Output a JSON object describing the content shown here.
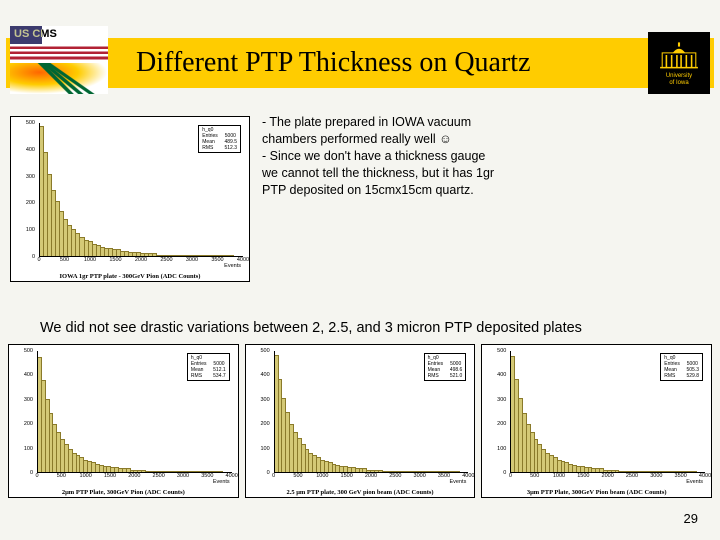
{
  "title": "Different PTP Thickness on Quartz",
  "logo_left": {
    "label": "US CMS"
  },
  "logo_right": {
    "line1": "University",
    "line2": "of Iowa"
  },
  "description": "- The plate prepared in IOWA vacuum chambers performed really well ☺\n- Since we don't have a thickness gauge we cannot tell the thickness, but it has 1gr PTP deposited on 15cmx15cm quartz.",
  "mid_sentence": "We did not see drastic variations between 2, 2.5, and 3 micron PTP deposited plates",
  "page_number": "29",
  "histograms": {
    "bar_color": "#d4c976",
    "bar_border": "#8a7a2a",
    "bg_color": "#ffffff",
    "axis_color": "#000000",
    "yticks": [
      {
        "label": "500",
        "pos": 0
      },
      {
        "label": "400",
        "pos": 20
      },
      {
        "label": "300",
        "pos": 40
      },
      {
        "label": "200",
        "pos": 60
      },
      {
        "label": "100",
        "pos": 80
      },
      {
        "label": "0",
        "pos": 100
      }
    ],
    "xticks": [
      {
        "label": "0",
        "pos": 0
      },
      {
        "label": "500",
        "pos": 12.5
      },
      {
        "label": "1000",
        "pos": 25
      },
      {
        "label": "1500",
        "pos": 37.5
      },
      {
        "label": "2000",
        "pos": 50
      },
      {
        "label": "2500",
        "pos": 62.5
      },
      {
        "label": "3000",
        "pos": 75
      },
      {
        "label": "3500",
        "pos": 87.5
      },
      {
        "label": "4000",
        "pos": 100
      }
    ],
    "xlabel": "Events",
    "top": {
      "caption": "IOWA 1gr PTP plate - 300GeV Pion (ADC Counts)",
      "stats": "h_q0\nEntries     5000\nMean       489.5\nRMS        512.3",
      "bars": [
        98,
        78,
        62,
        50,
        41,
        34,
        28,
        23,
        20,
        17,
        14,
        12,
        11,
        9,
        8,
        7,
        6,
        6,
        5,
        5,
        4,
        4,
        3,
        3,
        3,
        2,
        2,
        2,
        2,
        1,
        1,
        1,
        1,
        1,
        1,
        0,
        1,
        0,
        0,
        0,
        1,
        0,
        0,
        0,
        0,
        0,
        0,
        0
      ]
    },
    "bottom": [
      {
        "caption": "2μm PTP Plate, 300GeV Pion (ADC Counts)",
        "stats": "h_q0\nEntries     5000\nMean       512.1\nRMS        534.7",
        "bars": [
          95,
          76,
          60,
          49,
          40,
          33,
          27,
          23,
          19,
          16,
          14,
          12,
          10,
          9,
          8,
          7,
          6,
          5,
          5,
          4,
          4,
          3,
          3,
          3,
          2,
          2,
          2,
          2,
          1,
          1,
          1,
          1,
          1,
          1,
          0,
          1,
          0,
          0,
          0,
          0,
          0,
          0,
          0,
          0,
          0,
          0,
          0,
          0
        ]
      },
      {
        "caption": "2.5 μm PTP plate, 300 GeV pion beam (ADC Counts)",
        "stats": "h_q0\nEntries     5000\nMean       498.6\nRMS        521.0",
        "bars": [
          97,
          77,
          61,
          50,
          40,
          33,
          28,
          23,
          19,
          16,
          14,
          12,
          10,
          9,
          8,
          7,
          6,
          5,
          5,
          4,
          4,
          3,
          3,
          3,
          2,
          2,
          2,
          2,
          1,
          1,
          1,
          1,
          1,
          0,
          1,
          0,
          0,
          0,
          0,
          0,
          0,
          0,
          0,
          0,
          0,
          0,
          0,
          0
        ]
      },
      {
        "caption": "3μm PTP Plate, 300GeV Pion beam (ADC Counts)",
        "stats": "h_q0\nEntries     5000\nMean       505.3\nRMS        529.8",
        "bars": [
          96,
          77,
          61,
          49,
          40,
          33,
          27,
          23,
          19,
          16,
          14,
          12,
          10,
          9,
          8,
          7,
          6,
          5,
          5,
          4,
          4,
          3,
          3,
          3,
          2,
          2,
          2,
          2,
          1,
          1,
          1,
          1,
          1,
          1,
          0,
          0,
          1,
          0,
          0,
          0,
          0,
          0,
          0,
          0,
          0,
          0,
          0,
          0
        ]
      }
    ]
  }
}
